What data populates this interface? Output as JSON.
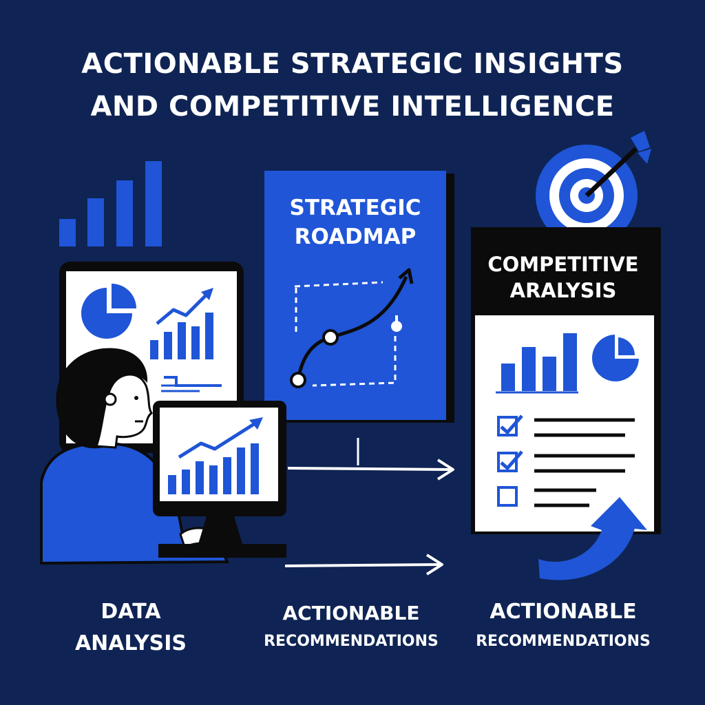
{
  "title": {
    "line1": "ACTIONABLE STRATEGIC INSIGHTS",
    "line2": "AND COMPETITIVE INTELLIGENCE"
  },
  "roadmap_card": {
    "line1": "STRATEGIC",
    "line2": "ROADMAP"
  },
  "analysis_card": {
    "line1": "COMPETITIVE",
    "line2": "ARALYSIS"
  },
  "labels": {
    "left": {
      "line1": "DATA",
      "line2": "ANALYSIS"
    },
    "middle": {
      "line1": "ACTIONABLE",
      "line2": "RECOMMENDATIONS"
    },
    "right": {
      "line1": "ACTIONABLE",
      "line2": "RECOMMENDATIONS"
    }
  },
  "checklist": {
    "items_checked": [
      true,
      true,
      false
    ]
  },
  "colors": {
    "background": "#0f2454",
    "accent_blue": "#1f55d6",
    "ink": "#0b0b0b",
    "paper": "#ffffff"
  },
  "icons": [
    "bar-chart-icon",
    "pie-chart-icon",
    "trend-arrow-icon",
    "target-icon",
    "arrow-right-icon",
    "curved-arrow-icon",
    "checkbox-icon"
  ]
}
